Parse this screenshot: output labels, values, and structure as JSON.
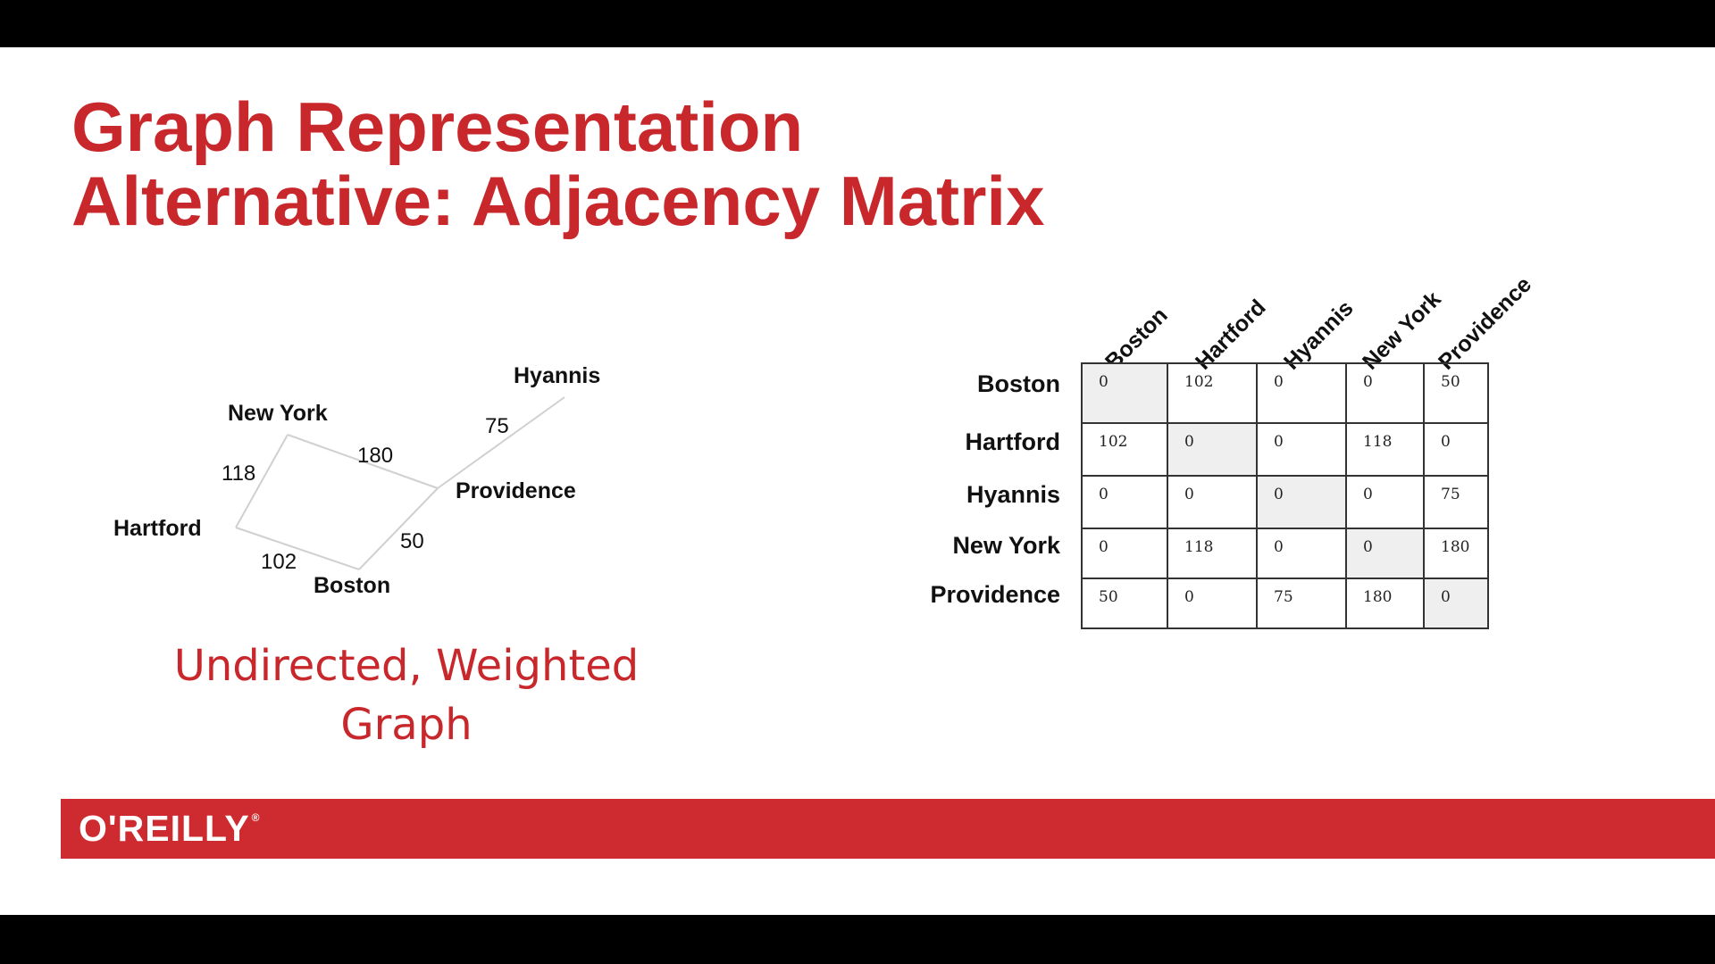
{
  "title": {
    "line1": "Graph Representation",
    "line2": "Alternative: Adjacency Matrix"
  },
  "graph": {
    "nodes": [
      "Hyannis",
      "New York",
      "Providence",
      "Hartford",
      "Boston"
    ],
    "edges": [
      {
        "from": "New York",
        "to": "Hartford",
        "weight": "118"
      },
      {
        "from": "New York",
        "to": "Providence",
        "weight": "180"
      },
      {
        "from": "Providence",
        "to": "Hyannis",
        "weight": "75"
      },
      {
        "from": "Providence",
        "to": "Boston",
        "weight": "50"
      },
      {
        "from": "Hartford",
        "to": "Boston",
        "weight": "102"
      }
    ]
  },
  "caption": {
    "line1": "Undirected, Weighted",
    "line2": "Graph"
  },
  "matrix": {
    "columns": [
      "Boston",
      "Hartford",
      "Hyannis",
      "New York",
      "Providence"
    ],
    "rows": [
      {
        "label": "Boston",
        "values": [
          "0",
          "102",
          "0",
          "0",
          "50"
        ]
      },
      {
        "label": "Hartford",
        "values": [
          "102",
          "0",
          "0",
          "118",
          "0"
        ]
      },
      {
        "label": "Hyannis",
        "values": [
          "0",
          "0",
          "0",
          "0",
          "75"
        ]
      },
      {
        "label": "New York",
        "values": [
          "0",
          "118",
          "0",
          "0",
          "180"
        ]
      },
      {
        "label": "Providence",
        "values": [
          "50",
          "0",
          "75",
          "180",
          "0"
        ]
      }
    ]
  },
  "footer": {
    "logo": "O'REILLY",
    "registered": "®",
    "color": "#cd2b2f"
  }
}
